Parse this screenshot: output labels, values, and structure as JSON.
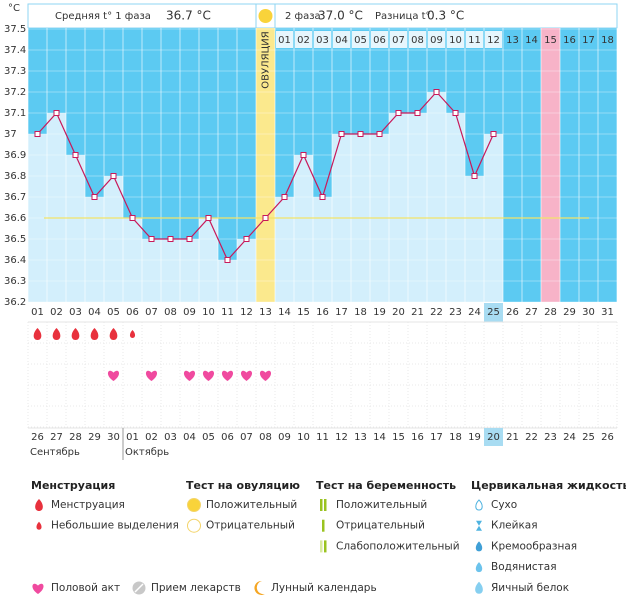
{
  "header": {
    "unit": "°C",
    "phase1_label": "Средняя t° 1 фаза",
    "phase1_value": "36.7 °C",
    "phase2_label": "2 фаза",
    "phase2_value": "37.0 °C",
    "diff_label": "Разница t°",
    "diff_value": "0.3 °C"
  },
  "chart_data": {
    "type": "line",
    "x": [
      "01",
      "02",
      "03",
      "04",
      "05",
      "06",
      "07",
      "08",
      "09",
      "10",
      "11",
      "12",
      "13",
      "14",
      "15",
      "16",
      "17",
      "18",
      "19",
      "20",
      "21",
      "22",
      "23",
      "24",
      "25",
      "26",
      "27",
      "28",
      "29",
      "30",
      "31"
    ],
    "values": [
      37.0,
      37.1,
      36.9,
      36.7,
      36.8,
      36.6,
      36.5,
      36.5,
      36.5,
      36.6,
      36.4,
      36.5,
      36.6,
      36.7,
      36.9,
      36.7,
      37.0,
      37.0,
      37.0,
      37.1,
      37.1,
      37.2,
      37.1,
      36.8,
      37.0,
      null,
      null,
      null,
      null,
      null,
      null
    ],
    "color": "#c8195a",
    "ylim": [
      36.2,
      37.5
    ],
    "yticks": [
      37.5,
      37.4,
      37.3,
      37.2,
      37.1,
      37,
      36.9,
      36.8,
      36.7,
      36.6,
      36.5,
      36.4,
      36.3,
      36.2
    ],
    "grid": true,
    "coverline": 36.6,
    "ovulation_label": "ОВУЛЯЦИЯ",
    "ovulation_index": 12,
    "phase2_start": 13,
    "phase2_days": [
      "01",
      "02",
      "03",
      "04",
      "05",
      "06",
      "07",
      "08",
      "09",
      "10",
      "11",
      "12",
      "13",
      "14",
      "15",
      "16",
      "17",
      "18"
    ],
    "today_index": 24,
    "marked_index": 27
  },
  "observations": {
    "menstruation": [
      "heavy",
      "heavy",
      "heavy",
      "heavy",
      "heavy",
      "light",
      null,
      null,
      null,
      null,
      null,
      null,
      null,
      null,
      null,
      null,
      null,
      null,
      null,
      null,
      null,
      null,
      null,
      null,
      null,
      null,
      null,
      null,
      null,
      null,
      null
    ],
    "intercourse": [
      false,
      false,
      false,
      false,
      true,
      false,
      true,
      false,
      true,
      true,
      true,
      true,
      true,
      false,
      false,
      false,
      false,
      false,
      false,
      false,
      false,
      false,
      false,
      false,
      false,
      false,
      false,
      false,
      false,
      false,
      false
    ]
  },
  "calendar": {
    "dates": [
      {
        "label": "26",
        "weekend": true
      },
      {
        "label": "27",
        "weekend": false
      },
      {
        "label": "28",
        "weekend": false
      },
      {
        "label": "29",
        "weekend": false
      },
      {
        "label": "30",
        "weekend": false
      },
      {
        "label": "01",
        "weekend": false
      },
      {
        "label": "02",
        "weekend": true
      },
      {
        "label": "03",
        "weekend": true
      },
      {
        "label": "04",
        "weekend": false
      },
      {
        "label": "05",
        "weekend": false
      },
      {
        "label": "06",
        "weekend": false
      },
      {
        "label": "07",
        "weekend": false
      },
      {
        "label": "08",
        "weekend": false
      },
      {
        "label": "09",
        "weekend": true
      },
      {
        "label": "10",
        "weekend": true
      },
      {
        "label": "11",
        "weekend": false
      },
      {
        "label": "12",
        "weekend": false
      },
      {
        "label": "13",
        "weekend": false
      },
      {
        "label": "14",
        "weekend": false
      },
      {
        "label": "15",
        "weekend": false
      },
      {
        "label": "16",
        "weekend": true
      },
      {
        "label": "17",
        "weekend": true
      },
      {
        "label": "18",
        "weekend": false
      },
      {
        "label": "19",
        "weekend": false
      },
      {
        "label": "20",
        "weekend": false
      },
      {
        "label": "21",
        "weekend": false
      },
      {
        "label": "22",
        "weekend": false
      },
      {
        "label": "23",
        "weekend": true
      },
      {
        "label": "24",
        "weekend": true
      },
      {
        "label": "25",
        "weekend": false
      },
      {
        "label": "26",
        "weekend": false
      }
    ],
    "months": [
      {
        "name": "Сентябрь",
        "from": 0
      },
      {
        "name": "Октябрь",
        "from": 5
      }
    ]
  },
  "legend": {
    "menstruation": {
      "title": "Менструация",
      "items": [
        "Менструация",
        "Небольшие выделения"
      ]
    },
    "ovulation_test": {
      "title": "Тест на овуляцию",
      "items": [
        "Положительный",
        "Отрицательный"
      ]
    },
    "pregnancy_test": {
      "title": "Тест на беременность",
      "items": [
        "Положительный",
        "Отрицательный",
        "Слабоположительный"
      ]
    },
    "cervical_fluid": {
      "title": "Цервикальная жидкость",
      "items": [
        "Сухо",
        "Клейкая",
        "Кремообразная",
        "Водянистая",
        "Яичный белок"
      ]
    },
    "other": [
      "Половой акт",
      "Прием лекарств",
      "Лунный календарь"
    ]
  }
}
